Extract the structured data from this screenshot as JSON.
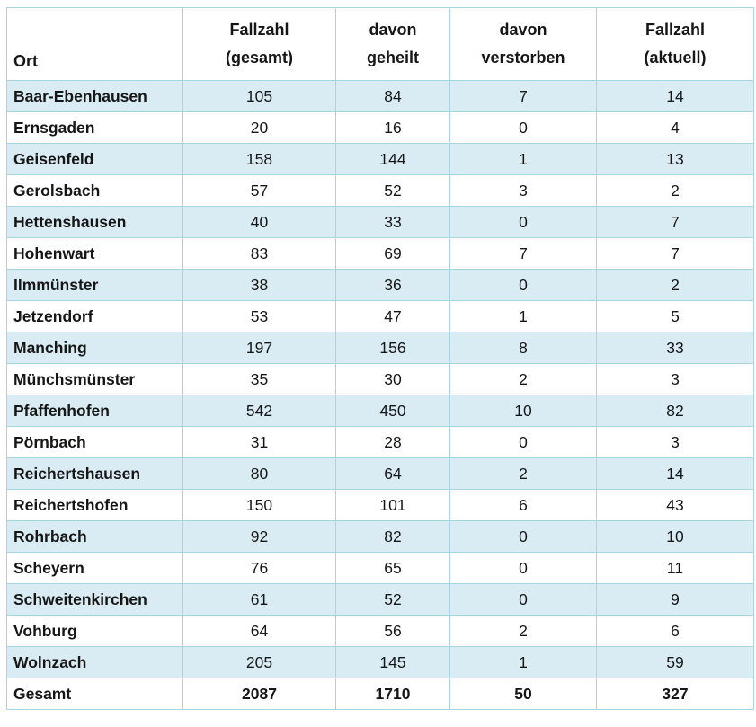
{
  "table": {
    "columns": [
      {
        "key": "ort",
        "lines": [
          "Ort"
        ]
      },
      {
        "key": "gesamt",
        "lines": [
          "Fallzahl",
          "(gesamt)"
        ]
      },
      {
        "key": "geheilt",
        "lines": [
          "davon",
          "geheilt"
        ]
      },
      {
        "key": "verstorben",
        "lines": [
          "davon",
          "verstorben"
        ]
      },
      {
        "key": "aktuell",
        "lines": [
          "Fallzahl",
          "(aktuell)"
        ]
      }
    ],
    "rows": [
      {
        "ort": "Baar-Ebenhausen",
        "gesamt": 105,
        "geheilt": 84,
        "verstorben": 7,
        "aktuell": 14
      },
      {
        "ort": "Ernsgaden",
        "gesamt": 20,
        "geheilt": 16,
        "verstorben": 0,
        "aktuell": 4
      },
      {
        "ort": "Geisenfeld",
        "gesamt": 158,
        "geheilt": 144,
        "verstorben": 1,
        "aktuell": 13
      },
      {
        "ort": "Gerolsbach",
        "gesamt": 57,
        "geheilt": 52,
        "verstorben": 3,
        "aktuell": 2
      },
      {
        "ort": "Hettenshausen",
        "gesamt": 40,
        "geheilt": 33,
        "verstorben": 0,
        "aktuell": 7
      },
      {
        "ort": "Hohenwart",
        "gesamt": 83,
        "geheilt": 69,
        "verstorben": 7,
        "aktuell": 7
      },
      {
        "ort": "Ilmmünster",
        "gesamt": 38,
        "geheilt": 36,
        "verstorben": 0,
        "aktuell": 2
      },
      {
        "ort": "Jetzendorf",
        "gesamt": 53,
        "geheilt": 47,
        "verstorben": 1,
        "aktuell": 5
      },
      {
        "ort": "Manching",
        "gesamt": 197,
        "geheilt": 156,
        "verstorben": 8,
        "aktuell": 33
      },
      {
        "ort": "Münchsmünster",
        "gesamt": 35,
        "geheilt": 30,
        "verstorben": 2,
        "aktuell": 3
      },
      {
        "ort": "Pfaffenhofen",
        "gesamt": 542,
        "geheilt": 450,
        "verstorben": 10,
        "aktuell": 82
      },
      {
        "ort": "Pörnbach",
        "gesamt": 31,
        "geheilt": 28,
        "verstorben": 0,
        "aktuell": 3
      },
      {
        "ort": "Reichertshausen",
        "gesamt": 80,
        "geheilt": 64,
        "verstorben": 2,
        "aktuell": 14
      },
      {
        "ort": "Reichertshofen",
        "gesamt": 150,
        "geheilt": 101,
        "verstorben": 6,
        "aktuell": 43
      },
      {
        "ort": "Rohrbach",
        "gesamt": 92,
        "geheilt": 82,
        "verstorben": 0,
        "aktuell": 10
      },
      {
        "ort": "Scheyern",
        "gesamt": 76,
        "geheilt": 65,
        "verstorben": 0,
        "aktuell": 11
      },
      {
        "ort": "Schweitenkirchen",
        "gesamt": 61,
        "geheilt": 52,
        "verstorben": 0,
        "aktuell": 9
      },
      {
        "ort": "Vohburg",
        "gesamt": 64,
        "geheilt": 56,
        "verstorben": 2,
        "aktuell": 6
      },
      {
        "ort": "Wolnzach",
        "gesamt": 205,
        "geheilt": 145,
        "verstorben": 1,
        "aktuell": 59
      }
    ],
    "totals": {
      "ort": "Gesamt",
      "gesamt": 2087,
      "geheilt": 1710,
      "verstorben": 50,
      "aktuell": 327
    }
  },
  "colors": {
    "stripe": "#d9ecf4",
    "grid": "#a9d4e4",
    "text": "#161616",
    "background": "#ffffff"
  }
}
